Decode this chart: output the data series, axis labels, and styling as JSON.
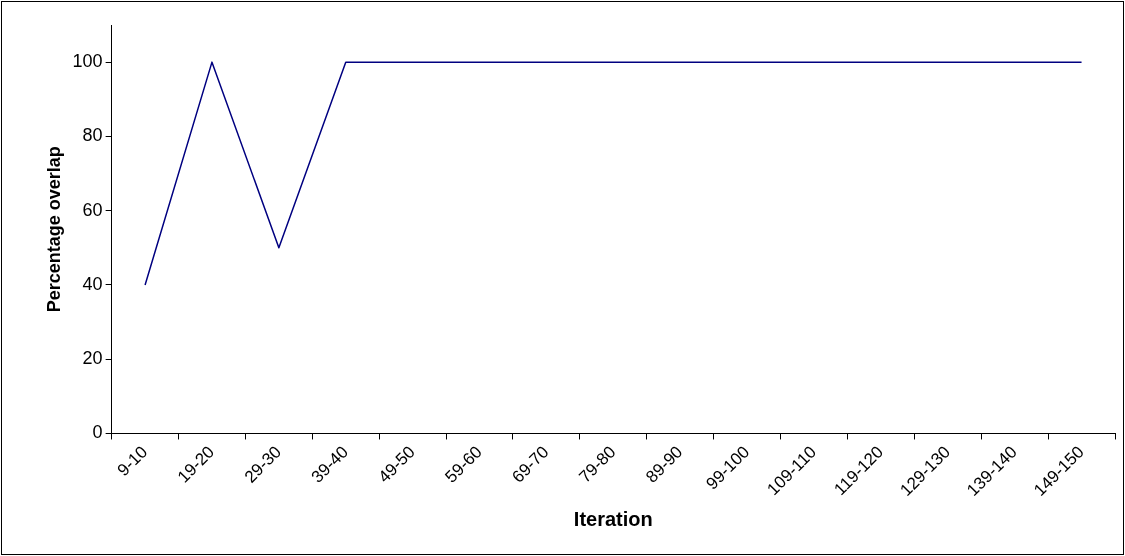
{
  "chart_data": {
    "type": "line",
    "xlabel": "Iteration",
    "ylabel": "Percentage overlap",
    "categories": [
      "9-10",
      "19-20",
      "29-30",
      "39-40",
      "49-50",
      "59-60",
      "69-70",
      "79-80",
      "89-90",
      "99-100",
      "109-110",
      "119-120",
      "129-130",
      "139-140",
      "149-150"
    ],
    "series": [
      {
        "color": "#000080",
        "values": [
          40,
          100,
          50,
          100,
          100,
          100,
          100,
          100,
          100,
          100,
          100,
          100,
          100,
          100,
          100
        ]
      }
    ],
    "ylim": [
      0,
      110
    ],
    "yticks": [
      0,
      20,
      40,
      60,
      80,
      100
    ],
    "grid": false,
    "legend": false,
    "marker": "none",
    "line_style": "solid"
  }
}
